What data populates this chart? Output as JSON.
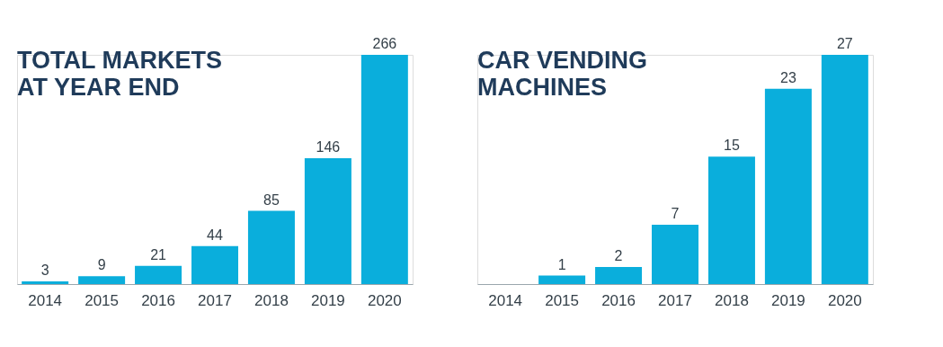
{
  "chart_data": [
    {
      "type": "bar",
      "title": "TOTAL MARKETS\nAT YEAR END",
      "categories": [
        "2014",
        "2015",
        "2016",
        "2017",
        "2018",
        "2019",
        "2020"
      ],
      "values": [
        3,
        9,
        21,
        44,
        85,
        146,
        266
      ],
      "color": "#0aaedc",
      "data_labels": true,
      "tick_labels": "x"
    },
    {
      "type": "bar",
      "title": "CAR VENDING\nMACHINES",
      "categories": [
        "2014",
        "2015",
        "2016",
        "2017",
        "2018",
        "2019",
        "2020"
      ],
      "values": [
        null,
        1,
        2,
        7,
        15,
        23,
        27
      ],
      "color": "#0aaedc",
      "data_labels": true,
      "tick_labels": "x"
    }
  ]
}
